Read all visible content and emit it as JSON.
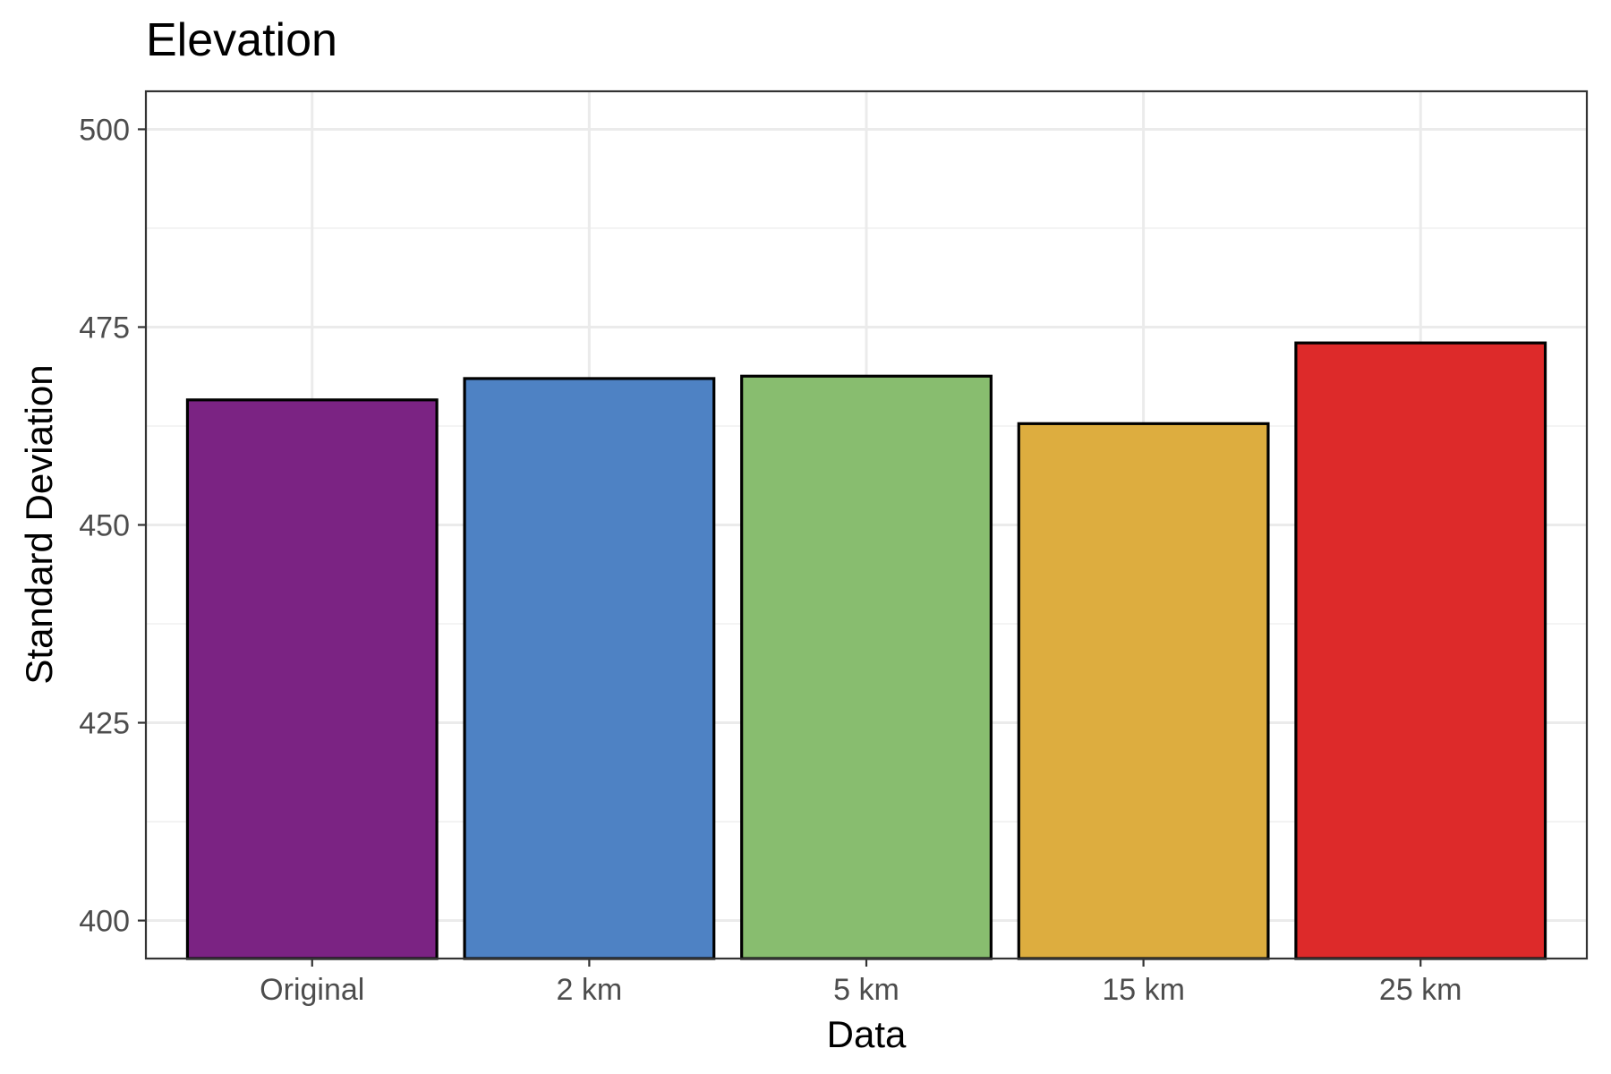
{
  "chart_data": {
    "type": "bar",
    "title": "Elevation",
    "xlabel": "Data",
    "ylabel": "Standard Deviation",
    "categories": [
      "Original",
      "2 km",
      "5 km",
      "15 km",
      "25 km"
    ],
    "values": [
      465.8,
      468.5,
      468.8,
      462.8,
      473.0
    ],
    "colors": [
      "#7b2383",
      "#4e82c4",
      "#88bd6f",
      "#ddad3f",
      "#dd2a2a"
    ],
    "ylim": [
      395.2,
      504.8
    ],
    "yticks": [
      400,
      425,
      450,
      475,
      500
    ],
    "grid": true,
    "legend": "none"
  }
}
